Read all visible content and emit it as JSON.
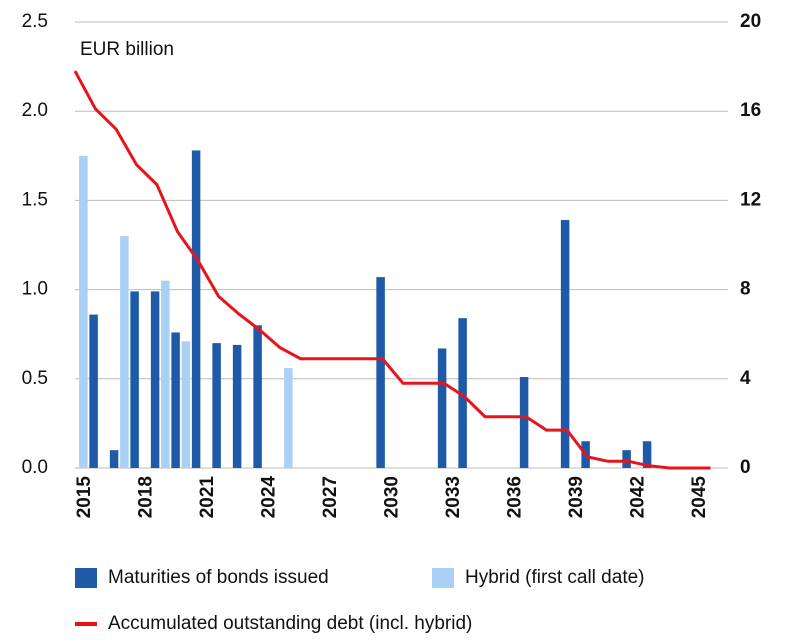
{
  "chart_data": {
    "type": "bar_line",
    "annotation": "EUR billion",
    "categories": [
      "2015",
      null,
      null,
      "2018",
      null,
      null,
      "2021",
      null,
      null,
      "2024",
      null,
      null,
      "2027",
      null,
      null,
      "2030",
      null,
      null,
      "2033",
      null,
      null,
      "2036",
      null,
      null,
      "2039",
      null,
      null,
      "2042",
      null,
      null,
      "2045",
      null
    ],
    "series": [
      {
        "name": "Maturities of bonds issued",
        "color": "#1f5aa8",
        "kind": "bar",
        "values": [
          0.86,
          0.1,
          0.99,
          0.99,
          0.76,
          1.78,
          0.7,
          0.69,
          0.8,
          0,
          0,
          0,
          0,
          0,
          1.07,
          0,
          0,
          0.67,
          0.84,
          0,
          0,
          0.51,
          0,
          1.39,
          0.15,
          0,
          0.1,
          0.15,
          0,
          0,
          0,
          0
        ]
      },
      {
        "name": "Hybrid (first call date)",
        "color": "#a9d0f5",
        "kind": "bar",
        "values": [
          1.75,
          0,
          1.3,
          0,
          1.05,
          0.71,
          0,
          0,
          0,
          0,
          0.56,
          0,
          0,
          0,
          0,
          0,
          0,
          0,
          0,
          0,
          0,
          0,
          0,
          0,
          0,
          0,
          0,
          0,
          0,
          0,
          0,
          0
        ]
      },
      {
        "name": "Accumulated outstanding debt (incl. hybrid)",
        "color": "#e8141c",
        "kind": "line",
        "axis": "y2",
        "values": [
          17.8,
          16.1,
          15.2,
          13.6,
          12.7,
          10.6,
          9.3,
          7.7,
          6.9,
          6.2,
          5.4,
          4.9,
          4.9,
          4.9,
          4.9,
          4.9,
          3.8,
          3.8,
          3.8,
          3.2,
          2.3,
          2.3,
          2.3,
          1.7,
          1.7,
          0.5,
          0.3,
          0.3,
          0.1,
          0,
          0,
          0
        ]
      }
    ],
    "ylim": [
      0,
      2.5
    ],
    "yticks": [
      {
        "value": 0,
        "label": "0.0"
      },
      {
        "value": 0.5,
        "label": "0.5"
      },
      {
        "value": 1,
        "label": "1.0"
      },
      {
        "value": 1.5,
        "label": "1.5"
      },
      {
        "value": 2,
        "label": "2.0"
      },
      {
        "value": 2.5,
        "label": "2.5"
      }
    ],
    "y2lim": [
      0,
      20
    ],
    "y2ticks": [
      0,
      4,
      8,
      12,
      16,
      20
    ],
    "grid": true
  }
}
